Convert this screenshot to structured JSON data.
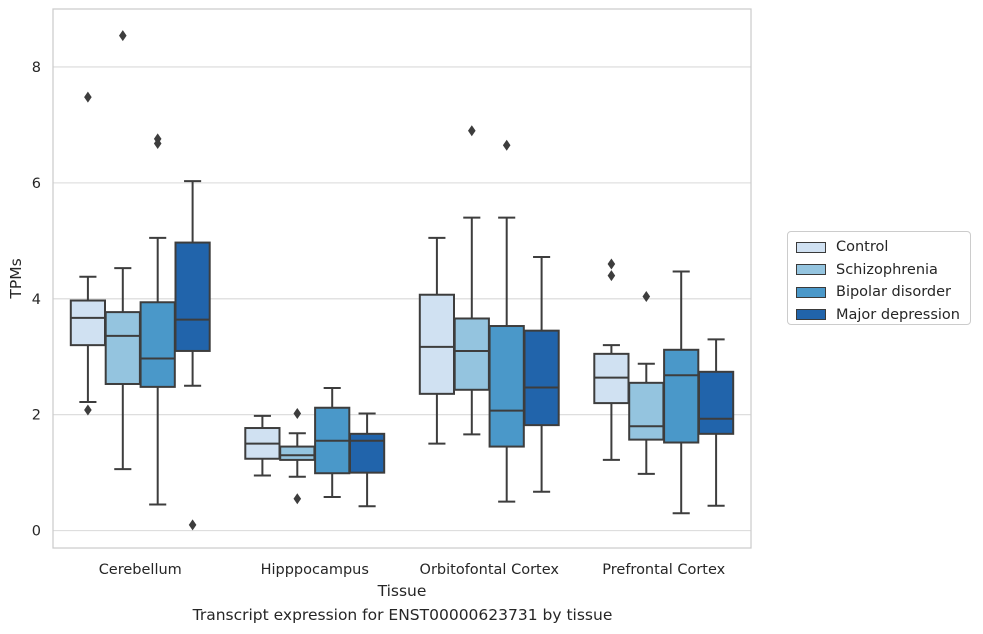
{
  "caption": "Transcript expression for ENST00000623731 by tissue",
  "chart_data": {
    "type": "box",
    "title": "",
    "xlabel": "Tissue",
    "ylabel": "TPMs",
    "ylim": [
      -0.3,
      9.0
    ],
    "yticks": [
      0,
      2,
      4,
      6,
      8
    ],
    "grid": "horizontal",
    "legend_position": "right",
    "categories": [
      "Cerebellum",
      "Hipppocampus",
      "Orbitofontal Cortex",
      "Prefrontal Cortex"
    ],
    "series": [
      {
        "name": "Control",
        "color": "#d0e1f2",
        "boxes": [
          {
            "q1": 3.2,
            "median": 3.67,
            "q3": 3.97,
            "whisker_low": 2.22,
            "whisker_high": 4.38,
            "outliers": [
              7.48,
              2.08
            ]
          },
          {
            "q1": 1.24,
            "median": 1.5,
            "q3": 1.77,
            "whisker_low": 0.95,
            "whisker_high": 1.98,
            "outliers": []
          },
          {
            "q1": 2.36,
            "median": 3.17,
            "q3": 4.07,
            "whisker_low": 1.5,
            "whisker_high": 5.05,
            "outliers": []
          },
          {
            "q1": 2.2,
            "median": 2.64,
            "q3": 3.05,
            "whisker_low": 1.22,
            "whisker_high": 3.2,
            "outliers": [
              4.6,
              4.4
            ]
          }
        ]
      },
      {
        "name": "Schizophrenia",
        "color": "#94c4df",
        "boxes": [
          {
            "q1": 2.53,
            "median": 3.36,
            "q3": 3.77,
            "whisker_low": 1.06,
            "whisker_high": 4.53,
            "outliers": [
              8.54
            ]
          },
          {
            "q1": 1.22,
            "median": 1.3,
            "q3": 1.45,
            "whisker_low": 0.93,
            "whisker_high": 1.68,
            "outliers": [
              2.02,
              0.55
            ]
          },
          {
            "q1": 2.43,
            "median": 3.1,
            "q3": 3.66,
            "whisker_low": 1.66,
            "whisker_high": 5.4,
            "outliers": [
              6.9
            ]
          },
          {
            "q1": 1.57,
            "median": 1.8,
            "q3": 2.55,
            "whisker_low": 0.98,
            "whisker_high": 2.88,
            "outliers": [
              4.04
            ]
          }
        ]
      },
      {
        "name": "Bipolar disorder",
        "color": "#4a98c9",
        "boxes": [
          {
            "q1": 2.48,
            "median": 2.97,
            "q3": 3.94,
            "whisker_low": 0.45,
            "whisker_high": 5.05,
            "outliers": [
              6.76,
              6.68
            ]
          },
          {
            "q1": 0.99,
            "median": 1.55,
            "q3": 2.12,
            "whisker_low": 0.58,
            "whisker_high": 2.46,
            "outliers": []
          },
          {
            "q1": 1.45,
            "median": 2.07,
            "q3": 3.53,
            "whisker_low": 0.5,
            "whisker_high": 5.4,
            "outliers": [
              6.65
            ]
          },
          {
            "q1": 1.52,
            "median": 2.68,
            "q3": 3.12,
            "whisker_low": 0.3,
            "whisker_high": 4.47,
            "outliers": []
          }
        ]
      },
      {
        "name": "Major depression",
        "color": "#2164ab",
        "boxes": [
          {
            "q1": 3.1,
            "median": 3.64,
            "q3": 4.97,
            "whisker_low": 2.5,
            "whisker_high": 6.03,
            "outliers": [
              0.1
            ]
          },
          {
            "q1": 1.0,
            "median": 1.55,
            "q3": 1.67,
            "whisker_low": 0.42,
            "whisker_high": 2.02,
            "outliers": []
          },
          {
            "q1": 1.82,
            "median": 2.47,
            "q3": 3.45,
            "whisker_low": 0.67,
            "whisker_high": 4.72,
            "outliers": []
          },
          {
            "q1": 1.67,
            "median": 1.93,
            "q3": 2.74,
            "whisker_low": 0.43,
            "whisker_high": 3.3,
            "outliers": []
          }
        ]
      }
    ]
  }
}
